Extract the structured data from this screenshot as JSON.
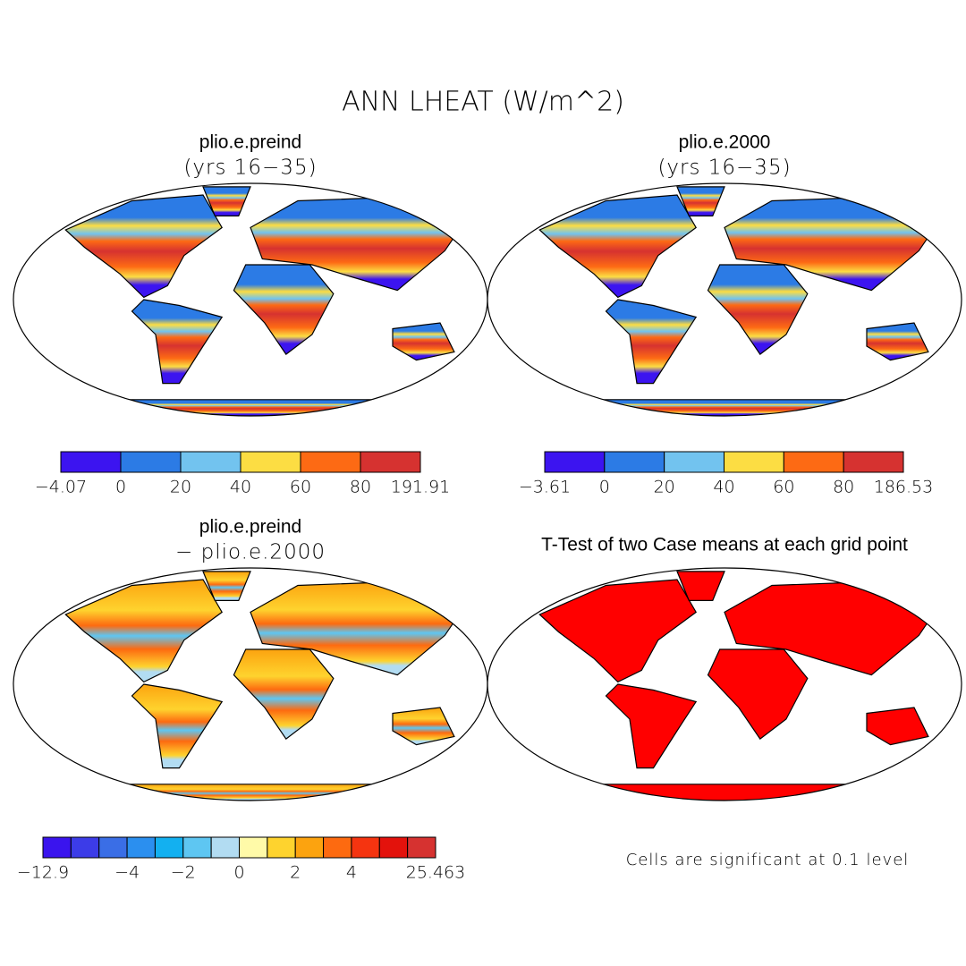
{
  "title": "ANN LHEAT (W/m^2)",
  "panels": [
    {
      "title": "plio.e.preind",
      "subtitle": "(yrs 16−35)",
      "colorbar": {
        "colors": [
          "#3c14f0",
          "#2c7be5",
          "#72c3ef",
          "#fcdd43",
          "#fd6a14",
          "#d63230"
        ],
        "labels": [
          "−4.07",
          "0",
          "20",
          "40",
          "60",
          "80",
          "191.91"
        ]
      }
    },
    {
      "title": "plio.e.2000",
      "subtitle": "(yrs 16−35)",
      "colorbar": {
        "colors": [
          "#3c14f0",
          "#2c7be5",
          "#72c3ef",
          "#fcdd43",
          "#fd6a14",
          "#d63230"
        ],
        "labels": [
          "−3.61",
          "0",
          "20",
          "40",
          "60",
          "80",
          "186.53"
        ]
      }
    },
    {
      "title": "plio.e.preind",
      "subtitle": "− plio.e.2000",
      "colorbar": {
        "colors": [
          "#3a14ee",
          "#3c3ce8",
          "#3a6ee6",
          "#2b8fef",
          "#13b0f0",
          "#5ec6f2",
          "#b2dcf2",
          "#fffaa8",
          "#fed32e",
          "#fca30f",
          "#fd6a10",
          "#f53410",
          "#e3120c",
          "#d63230"
        ],
        "labels": [
          "−12.9",
          null,
          null,
          "−4",
          null,
          "−2",
          null,
          "0",
          null,
          "2",
          null,
          "4",
          null,
          null,
          "25.463"
        ]
      }
    },
    {
      "title": "T-Test of two Case means at each grid point",
      "note": "Cells are significant at 0.1 level"
    }
  ]
}
